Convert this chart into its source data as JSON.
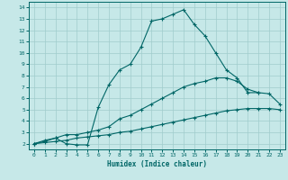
{
  "xlabel": "Humidex (Indice chaleur)",
  "xlim": [
    -0.5,
    23.5
  ],
  "ylim": [
    1.5,
    14.5
  ],
  "xticks": [
    0,
    1,
    2,
    3,
    4,
    5,
    6,
    7,
    8,
    9,
    10,
    11,
    12,
    13,
    14,
    15,
    16,
    17,
    18,
    19,
    20,
    21,
    22,
    23
  ],
  "yticks": [
    2,
    3,
    4,
    5,
    6,
    7,
    8,
    9,
    10,
    11,
    12,
    13,
    14
  ],
  "bg_color": "#c6e8e8",
  "line_color": "#006666",
  "grid_color": "#a0cccc",
  "line1_x": [
    0,
    1,
    2,
    3,
    4,
    5,
    6,
    7,
    8,
    9,
    10,
    11,
    12,
    13,
    14,
    15,
    16,
    17,
    18,
    19,
    20,
    21
  ],
  "line1_y": [
    2.0,
    2.2,
    2.5,
    2.0,
    1.9,
    1.9,
    5.2,
    7.2,
    8.5,
    9.0,
    10.5,
    12.8,
    13.0,
    13.4,
    13.8,
    12.5,
    11.5,
    10.0,
    8.5,
    7.8,
    6.5,
    6.5
  ],
  "line2_x": [
    0,
    1,
    2,
    3,
    4,
    5,
    6,
    7,
    8,
    9,
    10,
    11,
    12,
    13,
    14,
    15,
    16,
    17,
    18,
    19,
    20,
    21,
    22,
    23
  ],
  "line2_y": [
    2.0,
    2.3,
    2.5,
    2.8,
    2.8,
    3.0,
    3.2,
    3.5,
    4.2,
    4.5,
    5.0,
    5.5,
    6.0,
    6.5,
    7.0,
    7.3,
    7.5,
    7.8,
    7.8,
    7.5,
    6.8,
    6.5,
    6.4,
    5.5
  ],
  "line3_x": [
    0,
    1,
    2,
    3,
    4,
    5,
    6,
    7,
    8,
    9,
    10,
    11,
    12,
    13,
    14,
    15,
    16,
    17,
    18,
    19,
    20,
    21,
    22,
    23
  ],
  "line3_y": [
    2.0,
    2.1,
    2.2,
    2.3,
    2.5,
    2.6,
    2.7,
    2.8,
    3.0,
    3.1,
    3.3,
    3.5,
    3.7,
    3.9,
    4.1,
    4.3,
    4.5,
    4.7,
    4.9,
    5.0,
    5.1,
    5.1,
    5.1,
    5.0
  ]
}
